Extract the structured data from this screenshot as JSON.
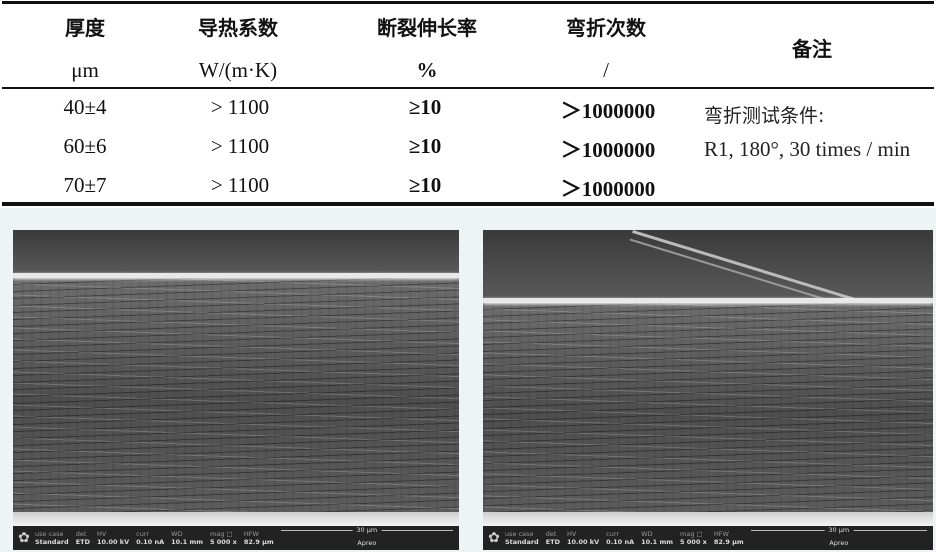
{
  "table": {
    "headers": [
      {
        "name": "厚度",
        "unit": "μm"
      },
      {
        "name": "导热系数",
        "unit": "W/(m·K)"
      },
      {
        "name": "断裂伸长率",
        "unit": "%"
      },
      {
        "name": "弯折次数",
        "unit": "/"
      },
      {
        "name": "备注"
      }
    ],
    "rows": [
      [
        "40±4",
        "> 1100",
        "≥10",
        "＞1000000"
      ],
      [
        "60±6",
        "> 1100",
        "≥10",
        "＞1000000"
      ],
      [
        "70±7",
        "> 1100",
        "≥10",
        "＞1000000"
      ]
    ],
    "note_line1": "弯折测试条件:",
    "note_line2": "R1, 180°, 30 times / min"
  },
  "sem": {
    "fields": [
      {
        "k": "use case",
        "v": "Standard"
      },
      {
        "k": "det",
        "v": "ETD"
      },
      {
        "k": "HV",
        "v": "10.00 kV"
      },
      {
        "k": "curr",
        "v": "0.10 nA"
      },
      {
        "k": "WD",
        "v": "10.1 mm"
      },
      {
        "k": "mag □",
        "v": "5 000 x"
      },
      {
        "k": "HFW",
        "v": "82.9 μm"
      }
    ],
    "scale": "30 μm",
    "instrument": "Apreo"
  }
}
